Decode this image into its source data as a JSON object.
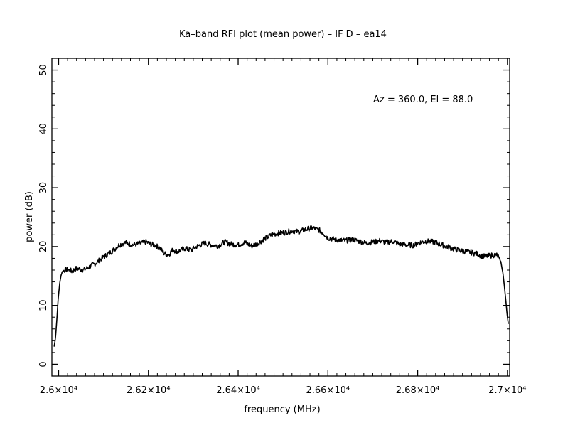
{
  "chart_data": {
    "type": "line",
    "title": "Ka–band RFI plot (mean power) – IF D – ea14",
    "xlabel": "frequency (MHz)",
    "ylabel": "power (dB)",
    "annotation": "Az = 360.0, El = 88.0",
    "xlim": [
      25985,
      27005
    ],
    "ylim": [
      -2,
      52
    ],
    "x_ticks": [
      {
        "value": 26000,
        "label": "2.6×10⁴"
      },
      {
        "value": 26200,
        "label": "2.62×10⁴"
      },
      {
        "value": 26400,
        "label": "2.64×10⁴"
      },
      {
        "value": 26600,
        "label": "2.66×10⁴"
      },
      {
        "value": 26800,
        "label": "2.68×10⁴"
      },
      {
        "value": 27000,
        "label": "2.7×10⁴"
      }
    ],
    "y_ticks": [
      {
        "value": 0,
        "label": "0"
      },
      {
        "value": 10,
        "label": "10"
      },
      {
        "value": 20,
        "label": "20"
      },
      {
        "value": 30,
        "label": "30"
      },
      {
        "value": 40,
        "label": "40"
      },
      {
        "value": 50,
        "label": "50"
      }
    ],
    "grid": false,
    "line_color": "#000000",
    "series": [
      {
        "x": [
          25990,
          25993,
          25996,
          25999,
          26002,
          26005,
          26008,
          26012,
          26020,
          26030,
          26040,
          26055,
          26070,
          26085,
          26100,
          26115,
          26125,
          26135,
          26150,
          26165,
          26180,
          26195,
          26205,
          26215,
          26225,
          26235,
          26245,
          26255,
          26265,
          26280,
          26295,
          26310,
          26325,
          26340,
          26355,
          26370,
          26385,
          26400,
          26415,
          26430,
          26445,
          26460,
          26475,
          26490,
          26505,
          26520,
          26535,
          26550,
          26565,
          26580,
          26590,
          26600,
          26610,
          26625,
          26640,
          26655,
          26670,
          26685,
          26700,
          26715,
          26730,
          26745,
          26760,
          26775,
          26790,
          26805,
          26820,
          26835,
          26850,
          26865,
          26880,
          26895,
          26910,
          26925,
          26935,
          26945,
          26955,
          26965,
          26975,
          26980,
          26985,
          26990,
          26995,
          26998,
          27000,
          27002
        ],
        "y": [
          3,
          4.5,
          7.5,
          11,
          13.5,
          15,
          15.7,
          16,
          16.1,
          15.8,
          16.3,
          16,
          16.6,
          17.3,
          18.2,
          19,
          19.6,
          20.3,
          20.7,
          20.3,
          20.5,
          20.8,
          20.4,
          20.2,
          19.8,
          18.8,
          18.6,
          19.5,
          19.1,
          19.7,
          19.4,
          20.1,
          20.6,
          20.3,
          20.1,
          20.8,
          20.4,
          20.3,
          20.7,
          20.1,
          20.6,
          21.4,
          22,
          22.3,
          22.4,
          22.7,
          22.5,
          22.9,
          23.2,
          22.8,
          22.3,
          21.5,
          21.3,
          21.1,
          21,
          21.2,
          20.9,
          20.6,
          20.8,
          21,
          20.7,
          20.9,
          20.4,
          20.3,
          20.2,
          20.7,
          20.9,
          20.8,
          20.4,
          20,
          19.6,
          19.3,
          19.1,
          18.9,
          18.7,
          18.3,
          18.4,
          18.5,
          18.6,
          18.3,
          17.5,
          15.5,
          12,
          9.5,
          8,
          6.8
        ]
      }
    ]
  }
}
